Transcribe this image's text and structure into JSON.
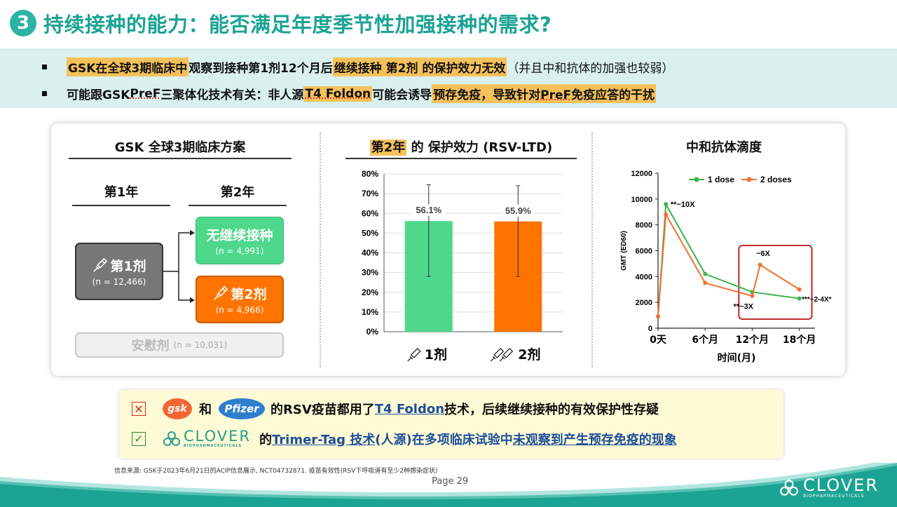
{
  "title": {
    "number": "3",
    "text": "持续接种的能力：能否满足年度季节性加强接种的需求?"
  },
  "bullets": [
    {
      "h1": "GSK在全球3期临床中",
      "t1": " 观察到接种第1剂12个月后 ",
      "h2": "继续接种 第2剂 的保护效力无效",
      "t2": "（并且中和抗体的加强也较弱）"
    },
    {
      "t1": "可能跟GSK ",
      "u1": "PreF",
      "t2": "三聚体化技术有关：非人源",
      "h1": "T4 Foldon",
      "t3": "可能会诱导",
      "h2a": "预存免疫，导致针对",
      "h2u": "PreF",
      "h2b": "免疫应答的干扰"
    }
  ],
  "design": {
    "title": "GSK 全球3期临床方案",
    "year1": "第1年",
    "year2": "第2年",
    "dose1": {
      "label": "第1剂",
      "n": "(n = 12,466)"
    },
    "no_revax": {
      "label": "无继续接种",
      "n": "(n = 4,991)"
    },
    "dose2": {
      "label": "第2剂",
      "n": "(n = 4,966)"
    },
    "placebo": {
      "label": "安慰剂",
      "n": "(n = 10,031)"
    }
  },
  "efficacy": {
    "title_hl": "第2年",
    "title_rest": " 的 保护效力 (RSV-LTD)",
    "x_labels": [
      "1剂",
      "2剂"
    ]
  },
  "antibody": {
    "title": "中和抗体滴度",
    "xlabel": "时间(月)",
    "ylabel": "GMT (ED60)",
    "annotations": {
      "peak": "**~10X",
      "low": "**~3X",
      "revax": "~6X",
      "late": "***~2-4X*"
    }
  },
  "chart_data": [
    {
      "type": "bar",
      "title": "第2年 的 保护效力 (RSV-LTD)",
      "categories": [
        "1剂",
        "2剂"
      ],
      "values": [
        56.1,
        55.9
      ],
      "value_labels": [
        "56.1%",
        "55.9%"
      ],
      "error_low": [
        28,
        28
      ],
      "error_high": [
        74.5,
        74
      ],
      "colors": [
        "#4dd88c",
        "#ff7300"
      ],
      "ylim": [
        0,
        80
      ],
      "yticks": [
        "0%",
        "10%",
        "20%",
        "30%",
        "40%",
        "50%",
        "60%",
        "70%",
        "80%"
      ]
    },
    {
      "type": "line",
      "title": "中和抗体滴度",
      "xlabel": "时间(月)",
      "ylabel": "GMT (ED60)",
      "xlim": [
        0,
        20
      ],
      "ylim": [
        0,
        12000
      ],
      "xticks": [
        0,
        6,
        12,
        18
      ],
      "xtick_labels": [
        "0天",
        "6个月",
        "12个月",
        "18个月"
      ],
      "yticks": [
        "0",
        "2000",
        "4000",
        "6000",
        "8000",
        "10000",
        "12000"
      ],
      "series": [
        {
          "name": "1 dose",
          "color": "#3cb44b",
          "x": [
            0,
            1,
            6,
            12,
            18
          ],
          "y": [
            900,
            9600,
            4200,
            2800,
            2300
          ]
        },
        {
          "name": "2 doses",
          "color": "#f07030",
          "x": [
            0,
            1,
            6,
            12,
            13,
            18
          ],
          "y": [
            900,
            8800,
            3500,
            2500,
            4900,
            3000
          ]
        }
      ]
    }
  ],
  "notes": {
    "cross": "☒",
    "check": "☑",
    "gsk": "gsk",
    "and": "和",
    "pfizer": "Pfizer",
    "line1_a": "的RSV疫苗都用了 ",
    "line1_u": "T4 Foldon",
    "line1_b": " 技术，后续继续接种的有效保护性存疑",
    "clover": "CLOVER",
    "clover_sub": "BIOPHARMACEUTICALS",
    "line2_a": "的 ",
    "line2_u": "Trimer-Tag 技术",
    "line2_b": "(人源)在多项临床试验中 ",
    "line2_u2": "未观察到产生预存免疫的现象"
  },
  "source": "信息来源: GSK于2023年6月21日的ACIP信息展示, NCT04732871. 疫苗有效性(RSV下呼吸道有至少2种感染症状)",
  "page": "Page 29",
  "corner_logo": {
    "word": "CLOVER",
    "sub": "BIOPHARMACEUTICALS"
  }
}
